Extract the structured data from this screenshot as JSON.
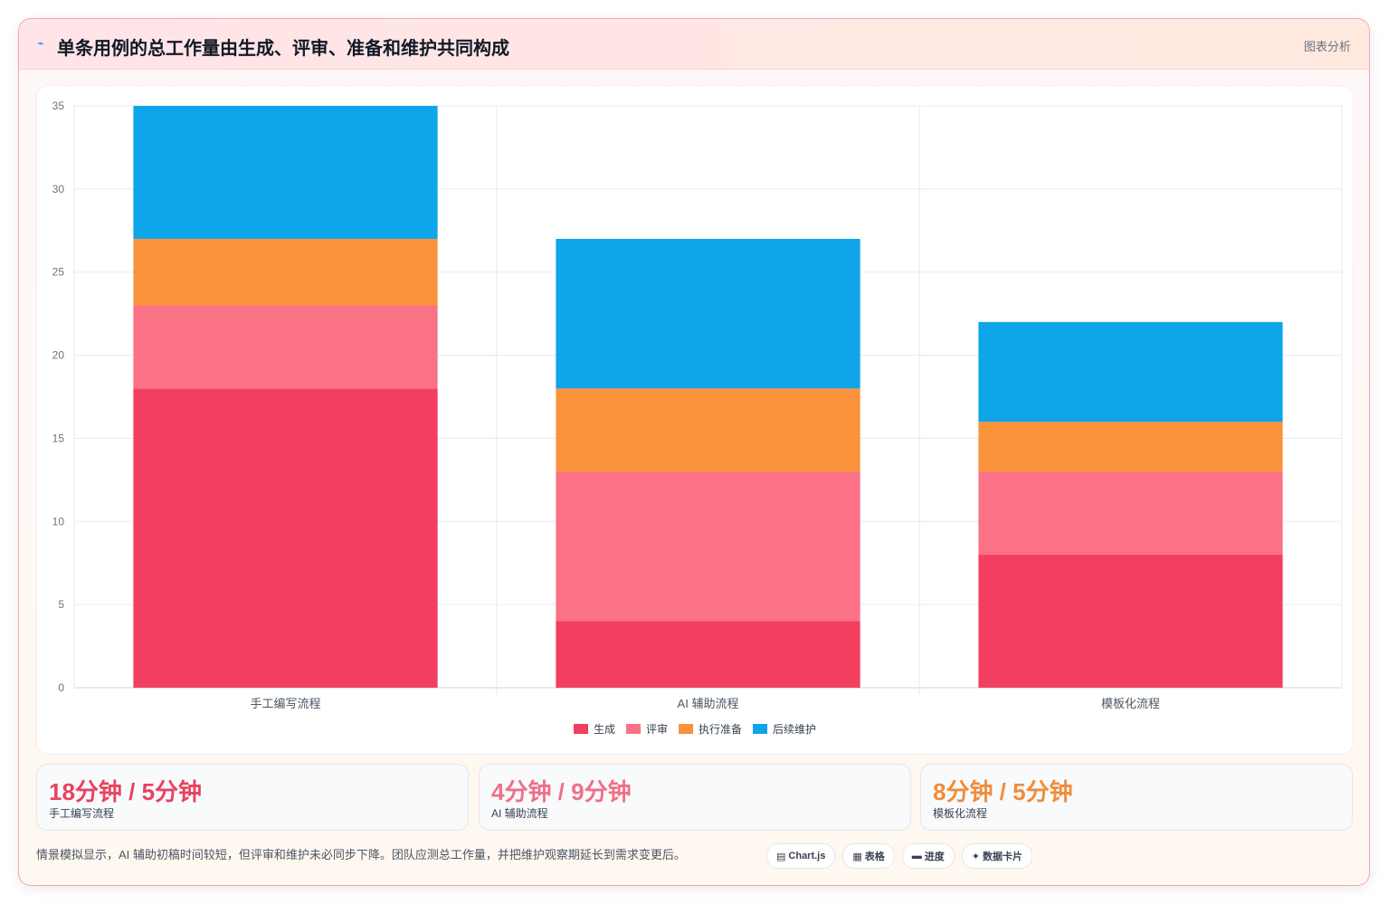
{
  "header": {
    "icon": "chart-line-icon",
    "title": "单条用例的总工作量由生成、评审、准备和维护共同构成",
    "action_label": "图表分析"
  },
  "chart_data": {
    "type": "bar",
    "stacked": true,
    "categories": [
      "手工编写流程",
      "AI 辅助流程",
      "模板化流程"
    ],
    "series": [
      {
        "name": "生成",
        "values": [
          18,
          4,
          8
        ],
        "color": "#f23f5f"
      },
      {
        "name": "评审",
        "values": [
          5,
          9,
          5
        ],
        "color": "#fb7185"
      },
      {
        "name": "执行准备",
        "values": [
          4,
          5,
          3
        ],
        "color": "#fb923c"
      },
      {
        "name": "后续维护",
        "values": [
          8,
          9,
          6
        ],
        "color": "#0ea5e9"
      }
    ],
    "ylim": [
      0,
      35
    ],
    "yticks": [
      0,
      5,
      10,
      15,
      20,
      25,
      30,
      35
    ],
    "grid": true,
    "legend": "bottom"
  },
  "stats": [
    {
      "value": "18分钟 / 5分钟",
      "label": "手工编写流程",
      "color": "#e8435f"
    },
    {
      "value": "4分钟 / 9分钟",
      "label": "AI 辅助流程",
      "color": "#f07086"
    },
    {
      "value": "8分钟 / 5分钟",
      "label": "模板化流程",
      "color": "#f28c3a"
    }
  ],
  "footnote": "情景模拟显示，AI 辅助初稿时间较短，但评审和维护未必同步下降。团队应测总工作量，并把维护观察期延长到需求变更后。",
  "tags": [
    {
      "icon": "chart-icon",
      "glyph": "▤",
      "label": "Chart.js"
    },
    {
      "icon": "table-icon",
      "glyph": "▦",
      "label": "表格"
    },
    {
      "icon": "progress-icon",
      "glyph": "▬",
      "label": "进度"
    },
    {
      "icon": "card-icon",
      "glyph": "✦",
      "label": "数据卡片"
    }
  ]
}
